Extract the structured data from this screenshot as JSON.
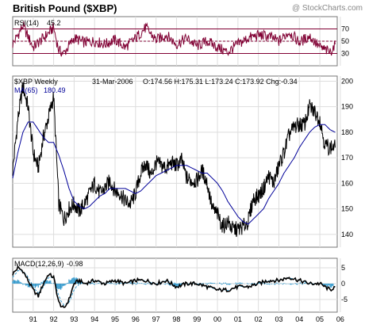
{
  "header": {
    "title": "British Pound ($XBP)",
    "watermark": "@ StockCharts.com"
  },
  "colors": {
    "price": "#000000",
    "ma": "#000099",
    "rsi": "#800033",
    "rsi_bands": "#800033",
    "macd_line": "#000000",
    "macd_signal": "#3399cc",
    "macd_histogram": "#3399cc",
    "panel_bg": "#ffffff",
    "grid": "#dddddd",
    "frame": "#777777"
  },
  "rsi_panel": {
    "label": "RSI(14)",
    "value": "45.2",
    "ticks": [
      "70",
      "50",
      "30"
    ]
  },
  "price_panel": {
    "label": "$XBP Weekly",
    "date": "31-Mar-2006",
    "ohlc": "O:174.56 H:175.31 L:173.24 C:173.92 Chg:-0.34",
    "ma_label": "MA(65)",
    "ma_value": "180.49",
    "ticks": [
      "200",
      "190",
      "180",
      "170",
      "160",
      "150",
      "140"
    ]
  },
  "macd_panel": {
    "label": "MACD(12,26,9)",
    "value": "-0.98",
    "ticks": [
      "5",
      "0",
      "-5"
    ]
  },
  "x_axis": {
    "labels": [
      "91",
      "92",
      "93",
      "94",
      "95",
      "96",
      "97",
      "98",
      "99",
      "00",
      "01",
      "02",
      "03",
      "04",
      "05",
      "06"
    ]
  },
  "chart_data": [
    {
      "type": "line",
      "title": "RSI(14)",
      "ylim": [
        10,
        90
      ],
      "bands": [
        30,
        70
      ],
      "midline": 50,
      "x": [
        1990.5,
        1991.0,
        1991.5,
        1992.0,
        1992.5,
        1992.75,
        1993.0,
        1993.5,
        1994.0,
        1994.5,
        1995.0,
        1995.5,
        1996.0,
        1996.5,
        1997.0,
        1997.5,
        1998.0,
        1998.5,
        1999.0,
        1999.5,
        2000.0,
        2000.5,
        2001.0,
        2001.5,
        2002.0,
        2002.5,
        2003.0,
        2003.5,
        2004.0,
        2004.5,
        2005.0,
        2005.5,
        2006.0,
        2006.25
      ],
      "series": [
        {
          "values": [
            45,
            75,
            40,
            55,
            72,
            35,
            30,
            55,
            48,
            50,
            45,
            52,
            40,
            55,
            72,
            52,
            60,
            45,
            55,
            42,
            50,
            40,
            32,
            45,
            55,
            60,
            58,
            50,
            65,
            48,
            58,
            40,
            32,
            45
          ]
        }
      ]
    },
    {
      "type": "line",
      "title": "$XBP Weekly",
      "ylim": [
        135,
        202
      ],
      "x": [
        1990.5,
        1990.75,
        1991.0,
        1991.25,
        1991.5,
        1991.75,
        1992.0,
        1992.25,
        1992.5,
        1992.75,
        1993.0,
        1993.25,
        1993.5,
        1993.75,
        1994.0,
        1994.25,
        1994.5,
        1994.75,
        1995.0,
        1995.25,
        1995.5,
        1995.75,
        1996.0,
        1996.25,
        1996.5,
        1996.75,
        1997.0,
        1997.25,
        1997.5,
        1997.75,
        1998.0,
        1998.25,
        1998.5,
        1998.75,
        1999.0,
        1999.25,
        1999.5,
        1999.75,
        2000.0,
        2000.25,
        2000.5,
        2000.75,
        2001.0,
        2001.25,
        2001.5,
        2001.75,
        2002.0,
        2002.25,
        2002.5,
        2002.75,
        2003.0,
        2003.25,
        2003.5,
        2003.75,
        2004.0,
        2004.25,
        2004.5,
        2004.75,
        2005.0,
        2005.25,
        2005.5,
        2005.75,
        2006.0,
        2006.25
      ],
      "series": [
        {
          "name": "$XBP Weekly",
          "values": [
            165,
            185,
            198,
            190,
            172,
            166,
            178,
            186,
            194,
            152,
            146,
            150,
            152,
            149,
            152,
            156,
            160,
            156,
            158,
            161,
            157,
            156,
            153,
            152,
            156,
            164,
            168,
            163,
            168,
            167,
            166,
            168,
            167,
            169,
            162,
            161,
            161,
            165,
            160,
            150,
            148,
            143,
            145,
            142,
            142,
            143,
            145,
            154,
            155,
            158,
            163,
            160,
            167,
            172,
            179,
            182,
            183,
            183,
            190,
            188,
            185,
            175,
            174,
            174
          ]
        },
        {
          "name": "MA(65)",
          "values": [
            162,
            172,
            180,
            184,
            184,
            181,
            178,
            176,
            176,
            171,
            165,
            158,
            153,
            151,
            150,
            151,
            153,
            155,
            156,
            158,
            158,
            158,
            158,
            157,
            156,
            157,
            159,
            161,
            163,
            164,
            165,
            166,
            167,
            167,
            167,
            166,
            165,
            164,
            164,
            162,
            160,
            157,
            153,
            150,
            147,
            145,
            144,
            146,
            148,
            150,
            154,
            157,
            160,
            164,
            167,
            170,
            174,
            177,
            180,
            182,
            183,
            183,
            181,
            180
          ]
        }
      ]
    },
    {
      "type": "line",
      "title": "MACD(12,26,9)",
      "ylim": [
        -9,
        8
      ],
      "x": [
        1990.5,
        1990.75,
        1991.0,
        1991.25,
        1991.5,
        1991.75,
        1992.0,
        1992.25,
        1992.5,
        1992.75,
        1993.0,
        1993.25,
        1993.5,
        1993.75,
        1994.0,
        1994.5,
        1995.0,
        1995.5,
        1996.0,
        1996.5,
        1997.0,
        1997.5,
        1998.0,
        1998.5,
        1999.0,
        1999.5,
        2000.0,
        2000.5,
        2001.0,
        2001.5,
        2002.0,
        2002.5,
        2003.0,
        2003.5,
        2004.0,
        2004.5,
        2005.0,
        2005.5,
        2006.0,
        2006.25
      ],
      "series": [
        {
          "name": "MACD",
          "values": [
            3,
            5,
            4,
            1,
            -2,
            -4,
            0,
            3,
            2,
            -6,
            -8,
            -5,
            0,
            1,
            0,
            1,
            0,
            1,
            0,
            1,
            1,
            0,
            1,
            -1,
            0,
            0,
            -1,
            -2,
            -2,
            -1,
            -1,
            0,
            1,
            1,
            2,
            1,
            0,
            0,
            -2,
            -1
          ]
        },
        {
          "name": "Signal",
          "values": [
            2,
            4,
            4,
            2,
            -1,
            -3,
            -1,
            2,
            2,
            -4,
            -7,
            -6,
            -2,
            0,
            0,
            1,
            0,
            1,
            0,
            1,
            1,
            0,
            1,
            0,
            0,
            0,
            -1,
            -2,
            -2,
            -1,
            -1,
            0,
            1,
            1,
            2,
            1,
            0,
            0,
            -1,
            -1
          ]
        }
      ]
    }
  ]
}
